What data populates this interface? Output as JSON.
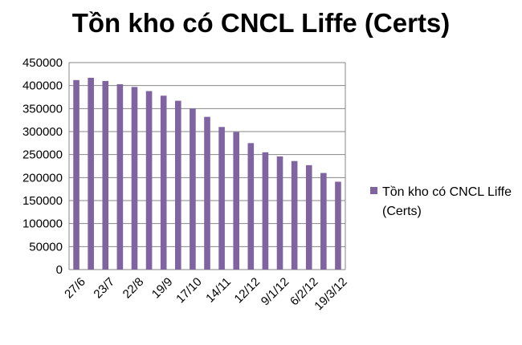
{
  "chart_data": {
    "type": "bar",
    "title": "Tồn kho có CNCL Liffe (Certs)",
    "xlabel": "",
    "ylabel": "",
    "ylim": [
      0,
      450000
    ],
    "yticks": [
      0,
      50000,
      100000,
      150000,
      200000,
      250000,
      300000,
      350000,
      400000,
      450000
    ],
    "grid": true,
    "legend_position": "right",
    "bar_color": "#8064A2",
    "x_tick_labels": [
      "27/6",
      "23/7",
      "22/8",
      "19/9",
      "17/10",
      "14/11",
      "12/12",
      "9/1/12",
      "6/2/12",
      "19/3/12"
    ],
    "series": [
      {
        "name": "Tồn kho có CNCL Liffe (Certs)",
        "legend_lines": [
          "Tồn kho có CNCL Liffe",
          "(Certs)"
        ],
        "values": [
          412000,
          417000,
          410000,
          403000,
          397000,
          388000,
          378000,
          367000,
          350000,
          332000,
          310000,
          299000,
          275000,
          255000,
          246000,
          236000,
          227000,
          210000,
          191000
        ]
      }
    ]
  }
}
